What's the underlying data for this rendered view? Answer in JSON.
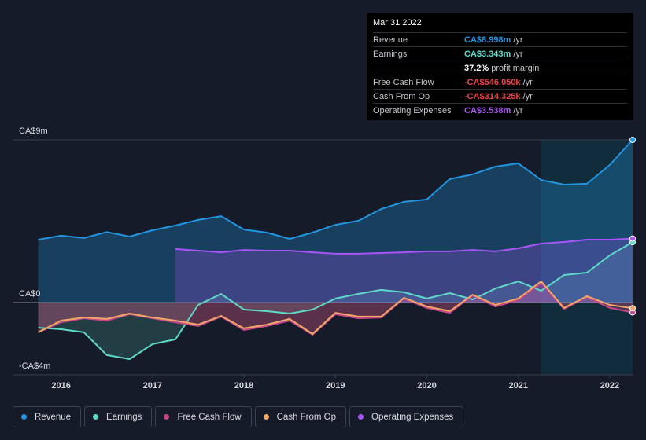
{
  "chart_data": {
    "type": "line",
    "x": [
      2015.75,
      2016.0,
      2016.25,
      2016.5,
      2016.75,
      2017.0,
      2017.25,
      2017.5,
      2017.75,
      2018.0,
      2018.25,
      2018.5,
      2018.75,
      2019.0,
      2019.25,
      2019.5,
      2019.75,
      2020.0,
      2020.25,
      2020.5,
      2020.75,
      2021.0,
      2021.25,
      2021.5,
      2021.75,
      2022.0,
      2022.25
    ],
    "series": [
      {
        "name": "Revenue",
        "color": "#2394df",
        "values": [
          3.48,
          3.7,
          3.57,
          3.9,
          3.65,
          4.0,
          4.26,
          4.57,
          4.78,
          4.04,
          3.87,
          3.52,
          3.87,
          4.3,
          4.52,
          5.17,
          5.57,
          5.7,
          6.83,
          7.09,
          7.52,
          7.7,
          6.78,
          6.52,
          6.57,
          7.61,
          8.998
        ]
      },
      {
        "name": "Earnings",
        "color": "#5fd8c8",
        "values": [
          -1.39,
          -1.48,
          -1.65,
          -2.91,
          -3.13,
          -2.3,
          -2.04,
          -0.13,
          0.48,
          -0.39,
          -0.48,
          -0.61,
          -0.39,
          0.22,
          0.48,
          0.7,
          0.57,
          0.22,
          0.52,
          0.17,
          0.78,
          1.17,
          0.65,
          1.52,
          1.65,
          2.61,
          3.343
        ]
      },
      {
        "name": "Free Cash Flow",
        "color": "#c7468a",
        "values": [
          -1.65,
          -1.09,
          -0.87,
          -1.0,
          -0.65,
          -0.87,
          -1.09,
          -1.3,
          -0.78,
          -1.52,
          -1.3,
          -1.0,
          -1.78,
          -0.65,
          -0.87,
          -0.83,
          0.22,
          -0.3,
          -0.57,
          0.39,
          -0.22,
          0.13,
          1.09,
          -0.35,
          0.3,
          -0.3,
          -0.546
        ]
      },
      {
        "name": "Cash From Op",
        "color": "#f0a868",
        "values": [
          -1.65,
          -1.0,
          -0.83,
          -0.91,
          -0.61,
          -0.83,
          -1.0,
          -1.22,
          -0.74,
          -1.43,
          -1.22,
          -0.91,
          -1.74,
          -0.57,
          -0.78,
          -0.78,
          0.26,
          -0.22,
          -0.48,
          0.43,
          -0.13,
          0.22,
          1.17,
          -0.3,
          0.35,
          -0.13,
          -0.314
        ]
      },
      {
        "name": "Operating Expenses",
        "color": "#a855f7",
        "values": [
          null,
          null,
          null,
          null,
          null,
          null,
          2.96,
          2.87,
          2.78,
          2.91,
          2.87,
          2.87,
          2.78,
          2.7,
          2.7,
          2.74,
          2.78,
          2.83,
          2.83,
          2.91,
          2.83,
          3.0,
          3.26,
          3.35,
          3.48,
          3.48,
          3.538
        ]
      }
    ],
    "xlim": [
      2015.47,
      2022.25
    ],
    "xticks": [
      2016,
      2017,
      2018,
      2019,
      2020,
      2021,
      2022
    ],
    "ylim": [
      -4,
      9
    ],
    "yticks": [
      {
        "value": 9,
        "label": "CA$9m"
      },
      {
        "value": 0,
        "label": "CA$0"
      },
      {
        "value": -4,
        "label": "-CA$4m"
      }
    ],
    "grid": true,
    "tooltip": {
      "date": "Mar 31 2022",
      "rows": [
        {
          "label": "Revenue",
          "value": "CA$8.998m",
          "unit": "/yr",
          "color": "#2394df"
        },
        {
          "label": "Earnings",
          "value": "CA$3.343m",
          "unit": "/yr",
          "color": "#5fd8c8"
        },
        {
          "value": "37.2%",
          "unit": "profit margin",
          "color": "#ffffff"
        },
        {
          "label": "Free Cash Flow",
          "value": "-CA$546.050k",
          "unit": "/yr",
          "color": "#e5484d"
        },
        {
          "label": "Cash From Op",
          "value": "-CA$314.325k",
          "unit": "/yr",
          "color": "#e5484d"
        },
        {
          "label": "Operating Expenses",
          "value": "CA$3.538m",
          "unit": "/yr",
          "color": "#a855f7"
        }
      ]
    }
  }
}
